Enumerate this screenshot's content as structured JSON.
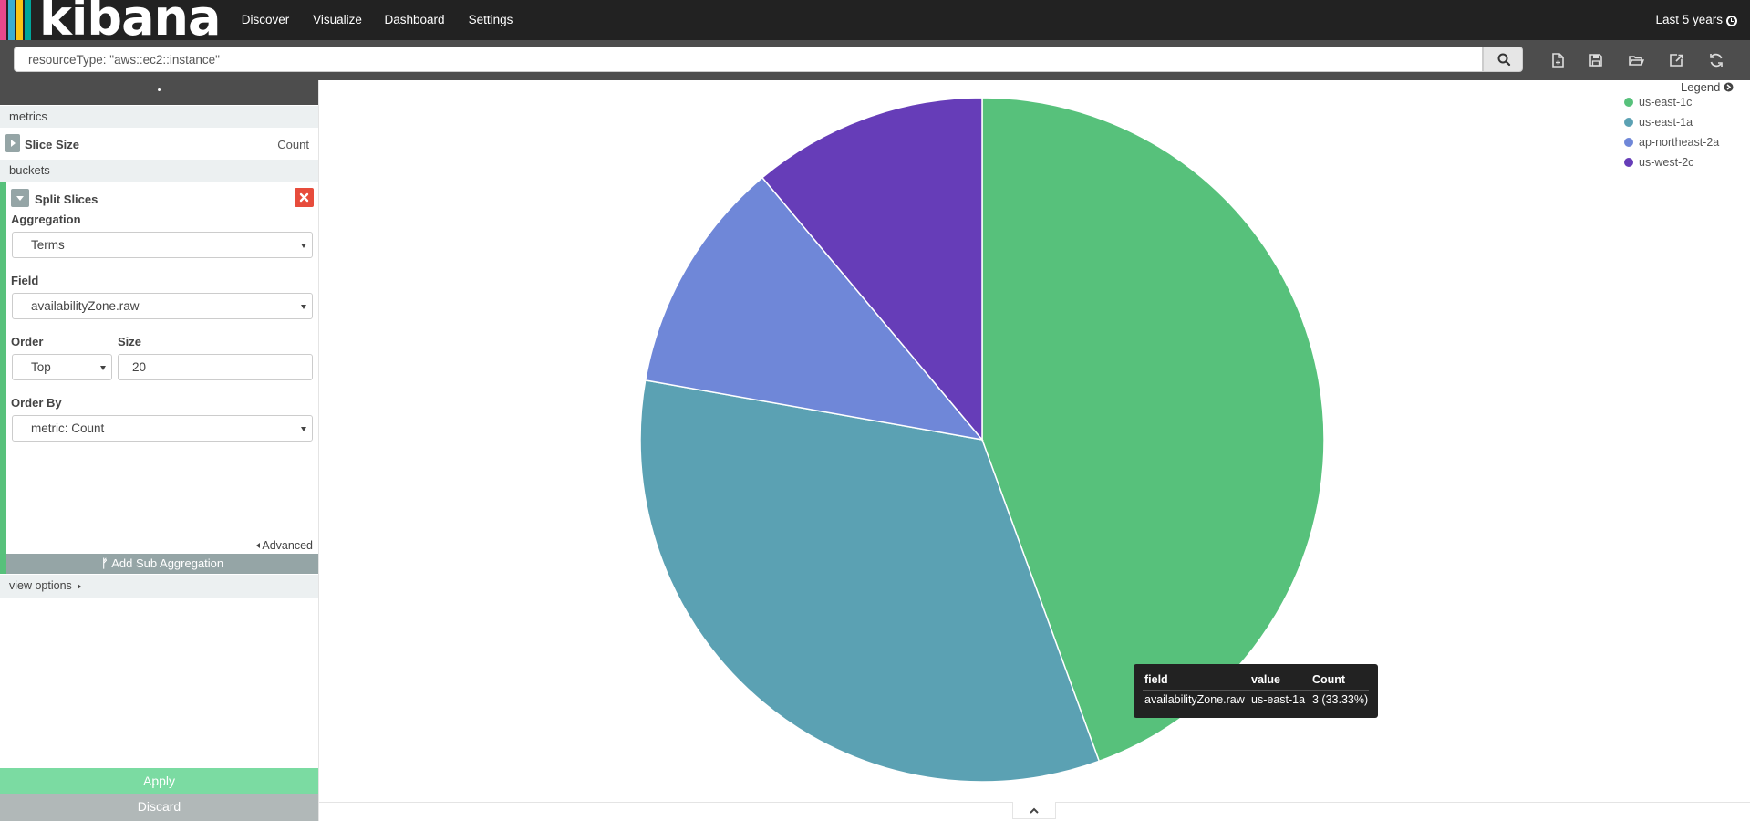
{
  "brand": {
    "name": "kibana",
    "bar_colors": [
      "#e8488b",
      "#3caed2",
      "#fec514",
      "#00a69b"
    ]
  },
  "nav": {
    "tabs": [
      {
        "label": "Discover",
        "active": false
      },
      {
        "label": "Visualize",
        "active": true
      },
      {
        "label": "Dashboard",
        "active": false
      },
      {
        "label": "Settings",
        "active": false
      }
    ]
  },
  "timepicker": {
    "label": "Last 5 years"
  },
  "search": {
    "query": "resourceType: \"aws::ec2::instance\""
  },
  "toolbar": {
    "icons": [
      "new-visualization-icon",
      "save-icon",
      "open-icon",
      "share-icon",
      "refresh-icon"
    ]
  },
  "sidebar": {
    "handle": "•",
    "metrics_header": "metrics",
    "metric": {
      "label": "Slice Size",
      "value": "Count"
    },
    "buckets_header": "buckets",
    "bucket": {
      "title": "Split Slices",
      "aggregation_label": "Aggregation",
      "aggregation_value": "Terms",
      "field_label": "Field",
      "field_value": "availabilityZone.raw",
      "order_label": "Order",
      "order_value": "Top",
      "size_label": "Size",
      "size_value": "20",
      "order_by_label": "Order By",
      "order_by_value": "metric: Count",
      "advanced_label": "Advanced",
      "add_sub_label": "Add Sub Aggregation"
    },
    "view_options_label": "view options",
    "apply_label": "Apply",
    "discard_label": "Discard"
  },
  "legend": {
    "toggle_label": "Legend"
  },
  "chart_data": {
    "type": "pie",
    "title": "",
    "categories": [
      "us-east-1c",
      "us-east-1a",
      "ap-northeast-2a",
      "us-west-2c"
    ],
    "values": [
      4,
      3,
      1,
      1
    ],
    "colors": [
      "#57c17b",
      "#5ba1b3",
      "#6f87d8",
      "#663db8"
    ]
  },
  "tooltip": {
    "headers": [
      "field",
      "value",
      "Count"
    ],
    "row": [
      "availabilityZone.raw",
      "us-east-1a",
      "3 (33.33%)"
    ]
  }
}
